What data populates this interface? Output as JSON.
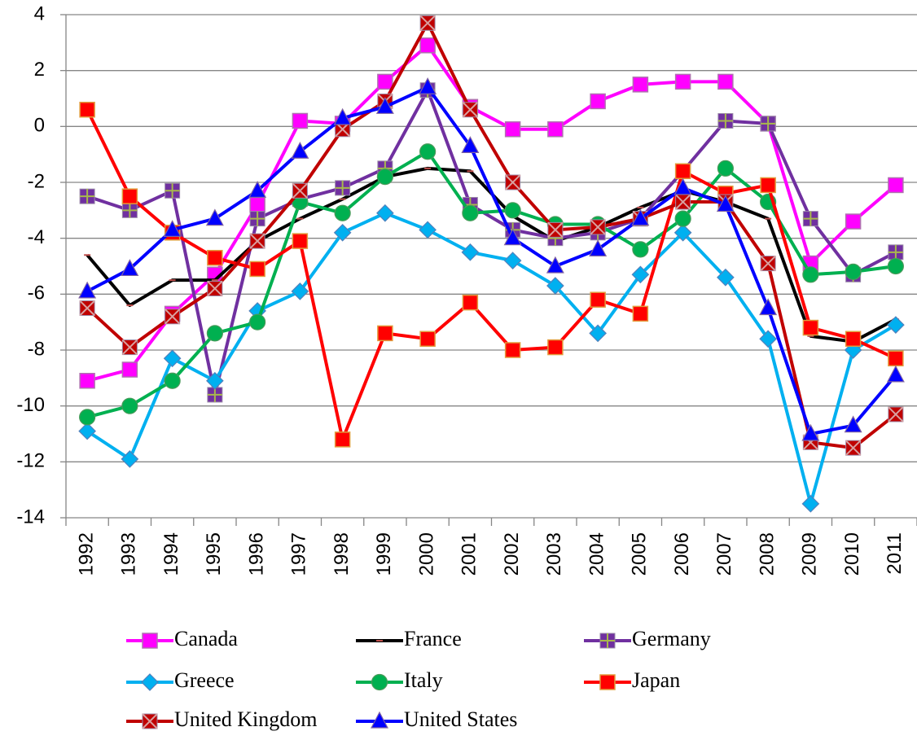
{
  "chart_data": {
    "type": "line",
    "categories": [
      "1992",
      "1993",
      "1994",
      "1995",
      "1996",
      "1997",
      "1998",
      "1999",
      "2000",
      "2001",
      "2002",
      "2003",
      "2004",
      "2005",
      "2006",
      "2007",
      "2008",
      "2009",
      "2010",
      "2011"
    ],
    "ylim": [
      -14,
      4
    ],
    "yticks": [
      -14,
      -12,
      -10,
      -8,
      -6,
      -4,
      -2,
      0,
      2,
      4
    ],
    "grid": true,
    "legend": "bottom",
    "series": [
      {
        "name": "Canada",
        "color": "#ff00ff",
        "marker": "square",
        "values": [
          -9.1,
          -8.7,
          -6.7,
          -5.3,
          -2.8,
          0.2,
          0.1,
          1.6,
          2.9,
          0.7,
          -0.1,
          -0.1,
          0.9,
          1.5,
          1.6,
          1.6,
          0.1,
          -4.9,
          -3.4,
          -2.1
        ]
      },
      {
        "name": "France",
        "color": "#000000",
        "marker": "dash",
        "values": [
          -4.6,
          -6.4,
          -5.5,
          -5.5,
          -4.1,
          -3.3,
          -2.6,
          -1.8,
          -1.5,
          -1.6,
          -3.2,
          -4.1,
          -3.6,
          -2.9,
          -2.3,
          -2.7,
          -3.3,
          -7.5,
          -7.7,
          -6.9
        ]
      },
      {
        "name": "Germany",
        "color": "#7030a0",
        "marker": "plus-square",
        "values": [
          -2.5,
          -3.0,
          -2.3,
          -9.6,
          -3.3,
          -2.6,
          -2.2,
          -1.5,
          1.3,
          -2.8,
          -3.7,
          -4.0,
          -3.8,
          -3.3,
          -1.6,
          0.2,
          0.1,
          -3.3,
          -5.3,
          -4.5
        ]
      },
      {
        "name": "Greece",
        "color": "#00b0f0",
        "marker": "diamond",
        "values": [
          -10.9,
          -11.9,
          -8.3,
          -9.1,
          -6.6,
          -5.9,
          -3.8,
          -3.1,
          -3.7,
          -4.5,
          -4.8,
          -5.7,
          -7.4,
          -5.3,
          -3.8,
          -5.4,
          -7.6,
          -13.5,
          -8.0,
          -7.1
        ]
      },
      {
        "name": "Italy",
        "color": "#00b050",
        "marker": "circle",
        "values": [
          -10.4,
          -10.0,
          -9.1,
          -7.4,
          -7.0,
          -2.7,
          -3.1,
          -1.8,
          -0.9,
          -3.1,
          -3.0,
          -3.5,
          -3.5,
          -4.4,
          -3.3,
          -1.5,
          -2.7,
          -5.3,
          -5.2,
          -5.0
        ]
      },
      {
        "name": "Japan",
        "color": "#ff0000",
        "marker": "square",
        "values": [
          0.6,
          -2.5,
          -3.8,
          -4.7,
          -5.1,
          -4.1,
          -11.2,
          -7.4,
          -7.6,
          -6.3,
          -8.0,
          -7.9,
          -6.2,
          -6.7,
          -1.6,
          -2.4,
          -2.1,
          -7.2,
          -7.6,
          -8.3
        ]
      },
      {
        "name": "United Kingdom",
        "color": "#c00000",
        "marker": "x-square",
        "values": [
          -6.5,
          -7.9,
          -6.8,
          -5.8,
          -4.1,
          -2.3,
          -0.1,
          0.9,
          3.7,
          0.6,
          -2.0,
          -3.7,
          -3.6,
          -3.3,
          -2.7,
          -2.7,
          -4.9,
          -11.3,
          -11.5,
          -10.3
        ]
      },
      {
        "name": "United States",
        "color": "#0000ff",
        "marker": "triangle",
        "values": [
          -5.9,
          -5.1,
          -3.7,
          -3.3,
          -2.3,
          -0.9,
          0.3,
          0.7,
          1.4,
          -0.7,
          -4.0,
          -5.0,
          -4.4,
          -3.3,
          -2.2,
          -2.8,
          -6.5,
          -11.0,
          -10.7,
          -8.9
        ]
      }
    ]
  }
}
